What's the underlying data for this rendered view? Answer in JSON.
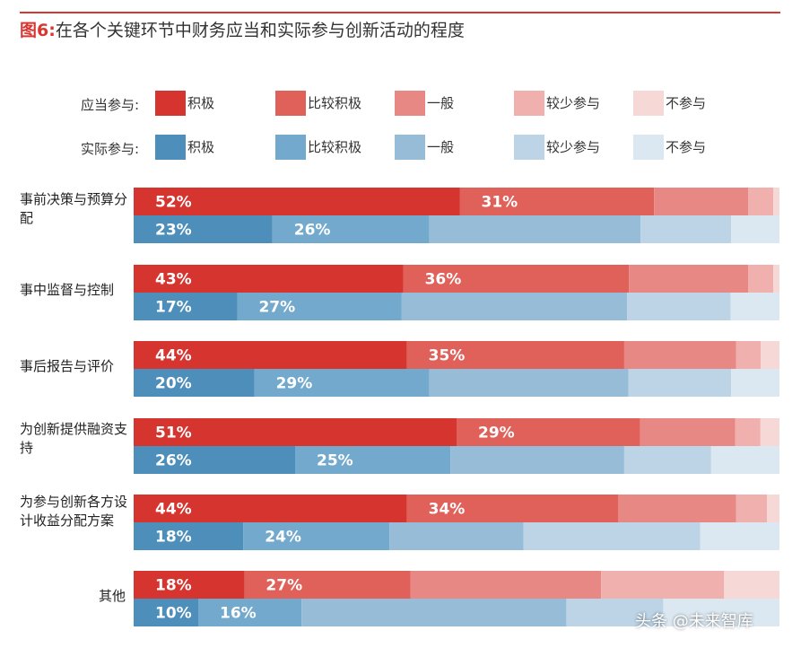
{
  "figure": {
    "number": "图6:",
    "title": "在各个关键环节中财务应当和实际参与创新活动的程度"
  },
  "legend": {
    "should_label": "应当参与:",
    "actual_label": "实际参与:",
    "levels": [
      "积极",
      "比较积极",
      "一般",
      "较少参与",
      "不参与"
    ]
  },
  "colors": {
    "should": [
      "#d6342f",
      "#e0605a",
      "#e88884",
      "#efb0ae",
      "#f6d8d7"
    ],
    "actual": [
      "#4d8fba",
      "#73a9cd",
      "#97bcd8",
      "#bcd4e6",
      "#dbe8f1"
    ],
    "accent": "#d93631"
  },
  "categories": [
    {
      "label": "事前决策与预算分配"
    },
    {
      "label": "事中监督与控制"
    },
    {
      "label": "事后报告与评价"
    },
    {
      "label": "为创新提供融资支持"
    },
    {
      "label": "为参与创新各方设计收益分配方案"
    },
    {
      "label": "其他"
    }
  ],
  "chart_data": {
    "type": "bar",
    "orientation": "horizontal",
    "stacked": true,
    "normalized": true,
    "xlim": [
      0,
      100
    ],
    "categories": [
      "事前决策与预算分配",
      "事中监督与控制",
      "事后报告与评价",
      "为创新提供融资支持",
      "为参与创新各方设计收益分配方案",
      "其他"
    ],
    "series": [
      {
        "name": "应当参与",
        "group": "should",
        "levels": [
          "积极",
          "比较积极",
          "一般",
          "较少参与",
          "不参与"
        ],
        "values": [
          [
            52,
            31,
            15,
            4,
            1
          ],
          [
            43,
            36,
            19,
            4,
            1
          ],
          [
            44,
            35,
            18,
            4,
            3
          ],
          [
            51,
            29,
            15,
            4,
            3
          ],
          [
            44,
            34,
            19,
            5,
            2
          ],
          [
            18,
            27,
            31,
            20,
            9
          ]
        ]
      },
      {
        "name": "实际参与",
        "group": "actual",
        "levels": [
          "积极",
          "比较积极",
          "一般",
          "较少参与",
          "不参与"
        ],
        "values": [
          [
            23,
            26,
            35,
            15,
            8
          ],
          [
            17,
            27,
            37,
            17,
            8
          ],
          [
            20,
            29,
            33,
            17,
            8
          ],
          [
            26,
            25,
            28,
            14,
            11
          ],
          [
            18,
            24,
            22,
            29,
            13
          ],
          [
            10,
            16,
            41,
            15,
            18
          ]
        ]
      }
    ],
    "labels_shown_for_levels": [
      "积极",
      "比较积极"
    ],
    "legend_position": "top",
    "grid": false
  },
  "watermark": "头条 @未来智库"
}
